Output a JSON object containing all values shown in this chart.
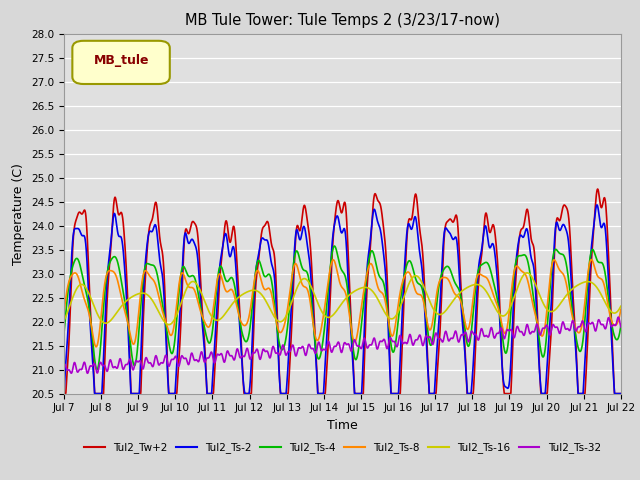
{
  "title": "MB Tule Tower: Tule Temps 2 (3/23/17-now)",
  "xlabel": "Time",
  "ylabel": "Temperature (C)",
  "ylim": [
    20.5,
    28.0
  ],
  "xlim": [
    0,
    15
  ],
  "background_color": "#d8d8d8",
  "plot_bg_color": "#e0e0e0",
  "tick_labels": [
    "Jul 7",
    "Jul 8",
    "Jul 9",
    "Jul 10",
    "Jul 11",
    "Jul 12",
    "Jul 13",
    "Jul 14",
    "Jul 15",
    "Jul 16",
    "Jul 17",
    "Jul 18",
    "Jul 19",
    "Jul 20",
    "Jul 21",
    "Jul 22"
  ],
  "series_names": [
    "Tul2_Tw+2",
    "Tul2_Ts-2",
    "Tul2_Ts-4",
    "Tul2_Ts-8",
    "Tul2_Ts-16",
    "Tul2_Ts-32"
  ],
  "series_colors": [
    "#cc0000",
    "#0000ee",
    "#00bb00",
    "#ff8800",
    "#cccc00",
    "#aa00cc"
  ],
  "legend_box_color": "#ffffcc",
  "legend_box_edgecolor": "#999900",
  "legend_label": "MB_tule",
  "legend_label_color": "#880000",
  "yticks": [
    20.5,
    21.0,
    21.5,
    22.0,
    22.5,
    23.0,
    23.5,
    24.0,
    24.5,
    25.0,
    25.5,
    26.0,
    26.5,
    27.0,
    27.5,
    28.0
  ]
}
